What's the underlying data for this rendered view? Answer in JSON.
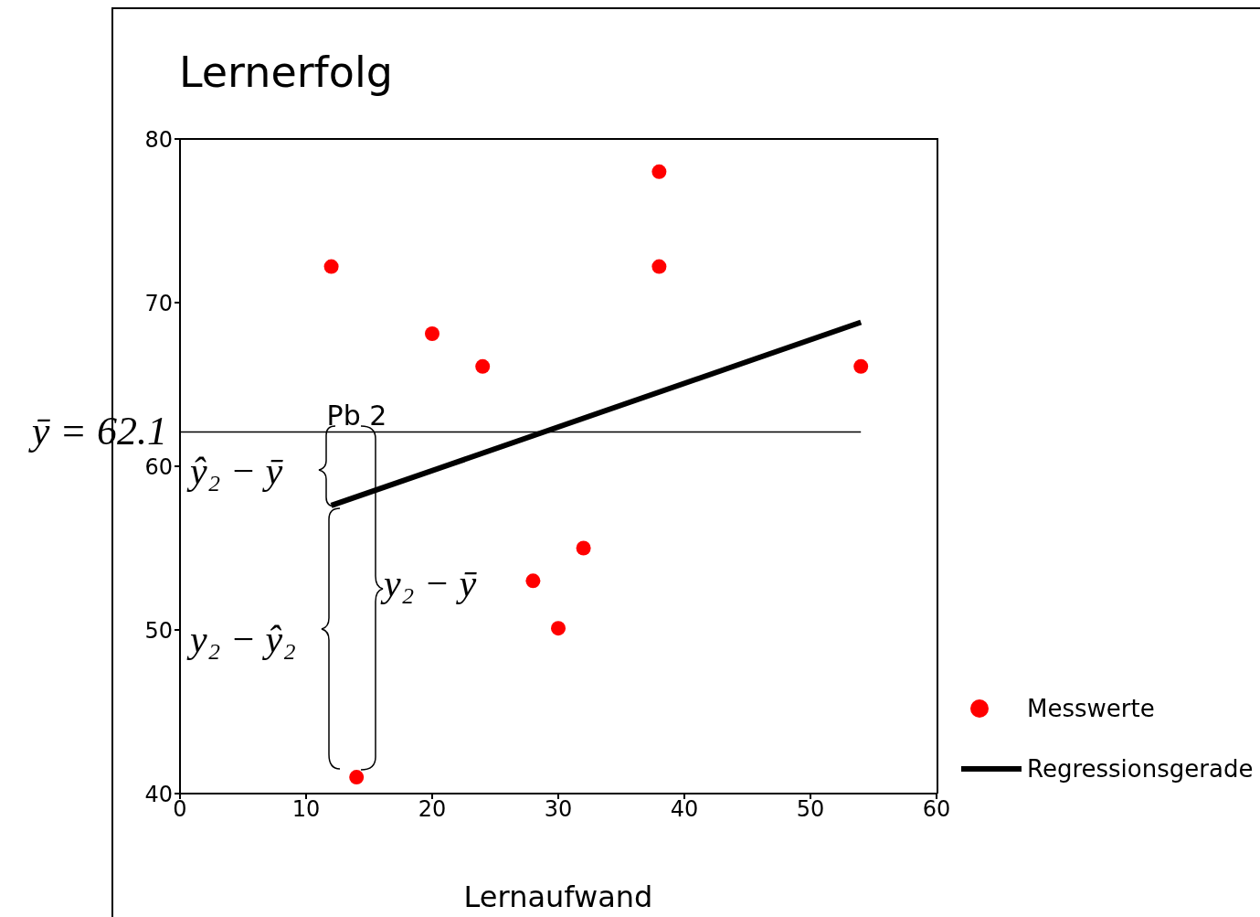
{
  "chart_data": {
    "type": "scatter",
    "title": "Lernerfolg",
    "xlabel": "Lernaufwand",
    "xlim": [
      0,
      60
    ],
    "xticks": [
      0,
      10,
      20,
      30,
      40,
      50,
      60
    ],
    "ylim": [
      40,
      80
    ],
    "yticks": [
      40,
      50,
      60,
      70,
      80
    ],
    "legend": "right",
    "series": [
      {
        "name": "Messwerte",
        "color": "#ff0000",
        "marker": "circle",
        "x": [
          12,
          20,
          24,
          38,
          38,
          54,
          32,
          28,
          30,
          14
        ],
        "values": [
          72.2,
          68.1,
          66.1,
          78,
          72.2,
          66.1,
          55,
          53,
          50.1,
          41
        ]
      },
      {
        "name": "Regressionsgerade",
        "type": "line",
        "color": "#000000",
        "x": [
          12,
          54
        ],
        "values": [
          57.6,
          68.8
        ]
      }
    ],
    "ref_lines": [
      {
        "axis": "y",
        "value": 62.1,
        "label": "ȳ = 62.1",
        "color": "#000000"
      }
    ],
    "annotations": [
      {
        "text": "Pb 2",
        "x": 14,
        "y": 62.1
      },
      "ŷ₂ − ȳ",
      "y₂ − ŷ₂",
      "y₂ − ȳ"
    ]
  }
}
